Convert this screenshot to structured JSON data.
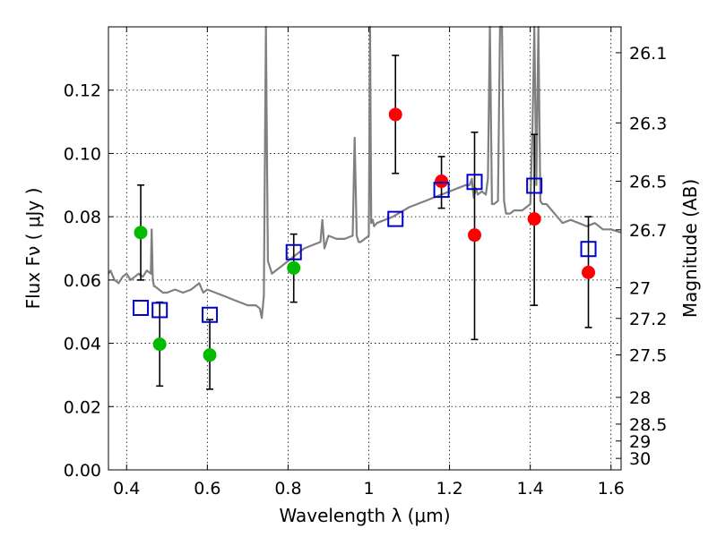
{
  "chart_data": {
    "type": "scatter",
    "xlabel": "Wavelength  λ (μm)",
    "ylabel": "Flux  Fν  ( μJy )",
    "ylabel_right": "Magnitude (AB)",
    "xlim": [
      0.355,
      1.625
    ],
    "ylim": [
      0.0,
      0.14
    ],
    "grid": true,
    "x_ticks": [
      0.4,
      0.6,
      0.8,
      1.0,
      1.2,
      1.4,
      1.6
    ],
    "x_tick_labels": [
      "0.4",
      "0.6",
      "0.8",
      "1",
      "1.2",
      "1.4",
      "1.6"
    ],
    "y_ticks": [
      0.0,
      0.02,
      0.04,
      0.06,
      0.08,
      0.1,
      0.12
    ],
    "y_tick_labels": [
      "0.00",
      "0.02",
      "0.04",
      "0.06",
      "0.08",
      "0.10",
      "0.12"
    ],
    "mag_ticks": [
      26.1,
      26.3,
      26.5,
      26.7,
      27,
      27.2,
      27.5,
      28,
      28.5,
      29,
      30
    ],
    "mag_tick_labels": [
      "26.1",
      "26.3",
      "26.5",
      "26.7",
      "27",
      "27.2",
      "27.5",
      "28",
      "28.5",
      "29",
      "30"
    ],
    "series": [
      {
        "name": "green-points",
        "color": "#00bb00",
        "marker": "circle",
        "x": [
          0.435,
          0.482,
          0.606,
          0.814
        ],
        "y": [
          0.075,
          0.0397,
          0.0363,
          0.0638
        ],
        "err_low": [
          0.06,
          0.0265,
          0.0255,
          0.053
        ],
        "err_high": [
          0.09,
          0.053,
          0.0475,
          0.0745
        ]
      },
      {
        "name": "red-points",
        "color": "#ff0000",
        "marker": "circle",
        "x": [
          1.066,
          1.18,
          1.262,
          1.41,
          1.544
        ],
        "y": [
          0.1123,
          0.0912,
          0.0742,
          0.0793,
          0.0624
        ],
        "err_low": [
          0.0937,
          0.0827,
          0.0412,
          0.052,
          0.045
        ],
        "err_high": [
          0.131,
          0.099,
          0.1067,
          0.106,
          0.08
        ]
      },
      {
        "name": "model-photometry",
        "color": "#0000cc",
        "marker": "square",
        "x": [
          0.435,
          0.482,
          0.606,
          0.814,
          1.066,
          1.18,
          1.262,
          1.41,
          1.544
        ],
        "y": [
          0.0512,
          0.0505,
          0.049,
          0.0688,
          0.0793,
          0.0885,
          0.091,
          0.0898,
          0.0698
        ]
      }
    ],
    "spectrum": {
      "color": "#808080",
      "x": [
        0.355,
        0.36,
        0.37,
        0.38,
        0.39,
        0.4,
        0.41,
        0.42,
        0.43,
        0.44,
        0.45,
        0.46,
        0.462,
        0.465,
        0.468,
        0.47,
        0.48,
        0.49,
        0.5,
        0.52,
        0.54,
        0.56,
        0.58,
        0.59,
        0.6,
        0.62,
        0.64,
        0.66,
        0.68,
        0.7,
        0.72,
        0.73,
        0.735,
        0.74,
        0.745,
        0.75,
        0.755,
        0.76,
        0.78,
        0.8,
        0.84,
        0.88,
        0.885,
        0.89,
        0.895,
        0.9,
        0.92,
        0.94,
        0.96,
        0.965,
        0.97,
        0.975,
        0.98,
        0.99,
        1.0,
        1.003,
        1.006,
        1.01,
        1.013,
        1.02,
        1.06,
        1.1,
        1.14,
        1.16,
        1.18,
        1.2,
        1.22,
        1.24,
        1.25,
        1.255,
        1.26,
        1.265,
        1.27,
        1.28,
        1.29,
        1.295,
        1.3,
        1.305,
        1.31,
        1.32,
        1.325,
        1.33,
        1.335,
        1.34,
        1.35,
        1.36,
        1.38,
        1.4,
        1.405,
        1.41,
        1.415,
        1.42,
        1.425,
        1.43,
        1.44,
        1.46,
        1.48,
        1.5,
        1.52,
        1.54,
        1.56,
        1.58,
        1.6,
        1.625
      ],
      "y": [
        0.062,
        0.063,
        0.06,
        0.059,
        0.061,
        0.062,
        0.06,
        0.061,
        0.062,
        0.061,
        0.063,
        0.062,
        0.076,
        0.06,
        0.058,
        0.058,
        0.057,
        0.056,
        0.056,
        0.057,
        0.056,
        0.057,
        0.059,
        0.056,
        0.057,
        0.056,
        0.055,
        0.054,
        0.053,
        0.052,
        0.052,
        0.051,
        0.048,
        0.055,
        0.14,
        0.066,
        0.064,
        0.062,
        0.064,
        0.066,
        0.07,
        0.072,
        0.079,
        0.07,
        0.072,
        0.074,
        0.073,
        0.073,
        0.074,
        0.105,
        0.074,
        0.072,
        0.072,
        0.073,
        0.074,
        0.14,
        0.078,
        0.079,
        0.077,
        0.078,
        0.08,
        0.083,
        0.085,
        0.086,
        0.087,
        0.088,
        0.089,
        0.09,
        0.09,
        0.092,
        0.086,
        0.089,
        0.087,
        0.088,
        0.087,
        0.092,
        0.14,
        0.084,
        0.084,
        0.085,
        0.14,
        0.14,
        0.085,
        0.081,
        0.081,
        0.082,
        0.082,
        0.084,
        0.105,
        0.14,
        0.09,
        0.14,
        0.085,
        0.084,
        0.084,
        0.081,
        0.078,
        0.079,
        0.078,
        0.077,
        0.078,
        0.076,
        0.076,
        0.075
      ]
    }
  }
}
